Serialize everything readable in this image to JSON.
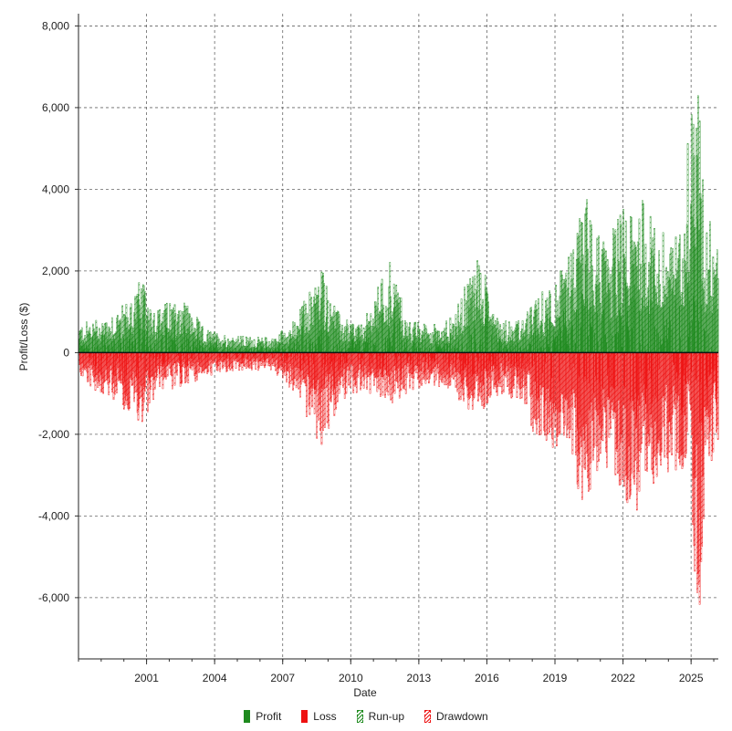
{
  "chart_data": {
    "type": "bar",
    "title": "",
    "xlabel": "Date",
    "ylabel": "Profit/Loss ($)",
    "ylim": [
      -7500,
      8300
    ],
    "xlim": [
      1998.0,
      2026.2
    ],
    "y_ticks": [
      -6000,
      -4000,
      -2000,
      0,
      2000,
      4000,
      6000,
      8000
    ],
    "y_tick_labels": [
      "-6,000",
      "-4,000",
      "-2,000",
      "0",
      "2,000",
      "4,000",
      "6,000",
      "8,000"
    ],
    "x_ticks": [
      2001,
      2004,
      2007,
      2010,
      2013,
      2016,
      2019,
      2022,
      2025
    ],
    "x_tick_labels": [
      "2001",
      "2004",
      "2007",
      "2010",
      "2013",
      "2016",
      "2019",
      "2022",
      "2025"
    ],
    "grid": true,
    "legend_position": "bottom",
    "series": [
      {
        "name": "Profit",
        "color": "#1e8a1e",
        "style": "solid"
      },
      {
        "name": "Loss",
        "color": "#ee1111",
        "style": "solid"
      },
      {
        "name": "Run-up",
        "color": "#1e8a1e",
        "style": "hatched"
      },
      {
        "name": "Drawdown",
        "color": "#ee1111",
        "style": "hatched"
      }
    ],
    "runup_envelope": [
      [
        1998.0,
        700
      ],
      [
        1999.0,
        900
      ],
      [
        2000.0,
        1200
      ],
      [
        2000.7,
        1800
      ],
      [
        2001.5,
        1100
      ],
      [
        2002.5,
        1500
      ],
      [
        2003.5,
        600
      ],
      [
        2004.5,
        450
      ],
      [
        2005.5,
        400
      ],
      [
        2006.5,
        380
      ],
      [
        2007.5,
        800
      ],
      [
        2008.7,
        2200
      ],
      [
        2009.5,
        900
      ],
      [
        2010.5,
        700
      ],
      [
        2011.7,
        2400
      ],
      [
        2012.5,
        800
      ],
      [
        2013.5,
        700
      ],
      [
        2014.5,
        900
      ],
      [
        2015.6,
        2500
      ],
      [
        2016.5,
        900
      ],
      [
        2017.5,
        800
      ],
      [
        2018.5,
        1600
      ],
      [
        2019.5,
        2200
      ],
      [
        2020.3,
        4000
      ],
      [
        2021.0,
        2800
      ],
      [
        2022.0,
        3600
      ],
      [
        2022.8,
        3900
      ],
      [
        2023.5,
        3000
      ],
      [
        2024.5,
        3000
      ],
      [
        2024.8,
        5300
      ],
      [
        2025.2,
        8300
      ],
      [
        2025.6,
        3300
      ],
      [
        2026.2,
        3400
      ]
    ],
    "drawdown_envelope": [
      [
        1998.0,
        -600
      ],
      [
        1999.0,
        -1100
      ],
      [
        2000.0,
        -1400
      ],
      [
        2000.7,
        -1800
      ],
      [
        2001.5,
        -1000
      ],
      [
        2002.5,
        -900
      ],
      [
        2003.5,
        -600
      ],
      [
        2004.5,
        -500
      ],
      [
        2005.5,
        -450
      ],
      [
        2006.5,
        -450
      ],
      [
        2007.5,
        -1000
      ],
      [
        2008.7,
        -2400
      ],
      [
        2009.5,
        -1200
      ],
      [
        2010.5,
        -1000
      ],
      [
        2011.7,
        -1300
      ],
      [
        2012.5,
        -1000
      ],
      [
        2013.5,
        -800
      ],
      [
        2014.5,
        -1000
      ],
      [
        2015.6,
        -1700
      ],
      [
        2016.5,
        -1000
      ],
      [
        2017.5,
        -1200
      ],
      [
        2018.3,
        -2400
      ],
      [
        2019.5,
        -2300
      ],
      [
        2020.2,
        -4100
      ],
      [
        2021.0,
        -2700
      ],
      [
        2022.0,
        -3500
      ],
      [
        2022.5,
        -4300
      ],
      [
        2023.5,
        -3000
      ],
      [
        2024.5,
        -3100
      ],
      [
        2024.9,
        -2500
      ],
      [
        2025.3,
        -7500
      ],
      [
        2025.6,
        -3200
      ],
      [
        2026.2,
        -2300
      ]
    ]
  }
}
